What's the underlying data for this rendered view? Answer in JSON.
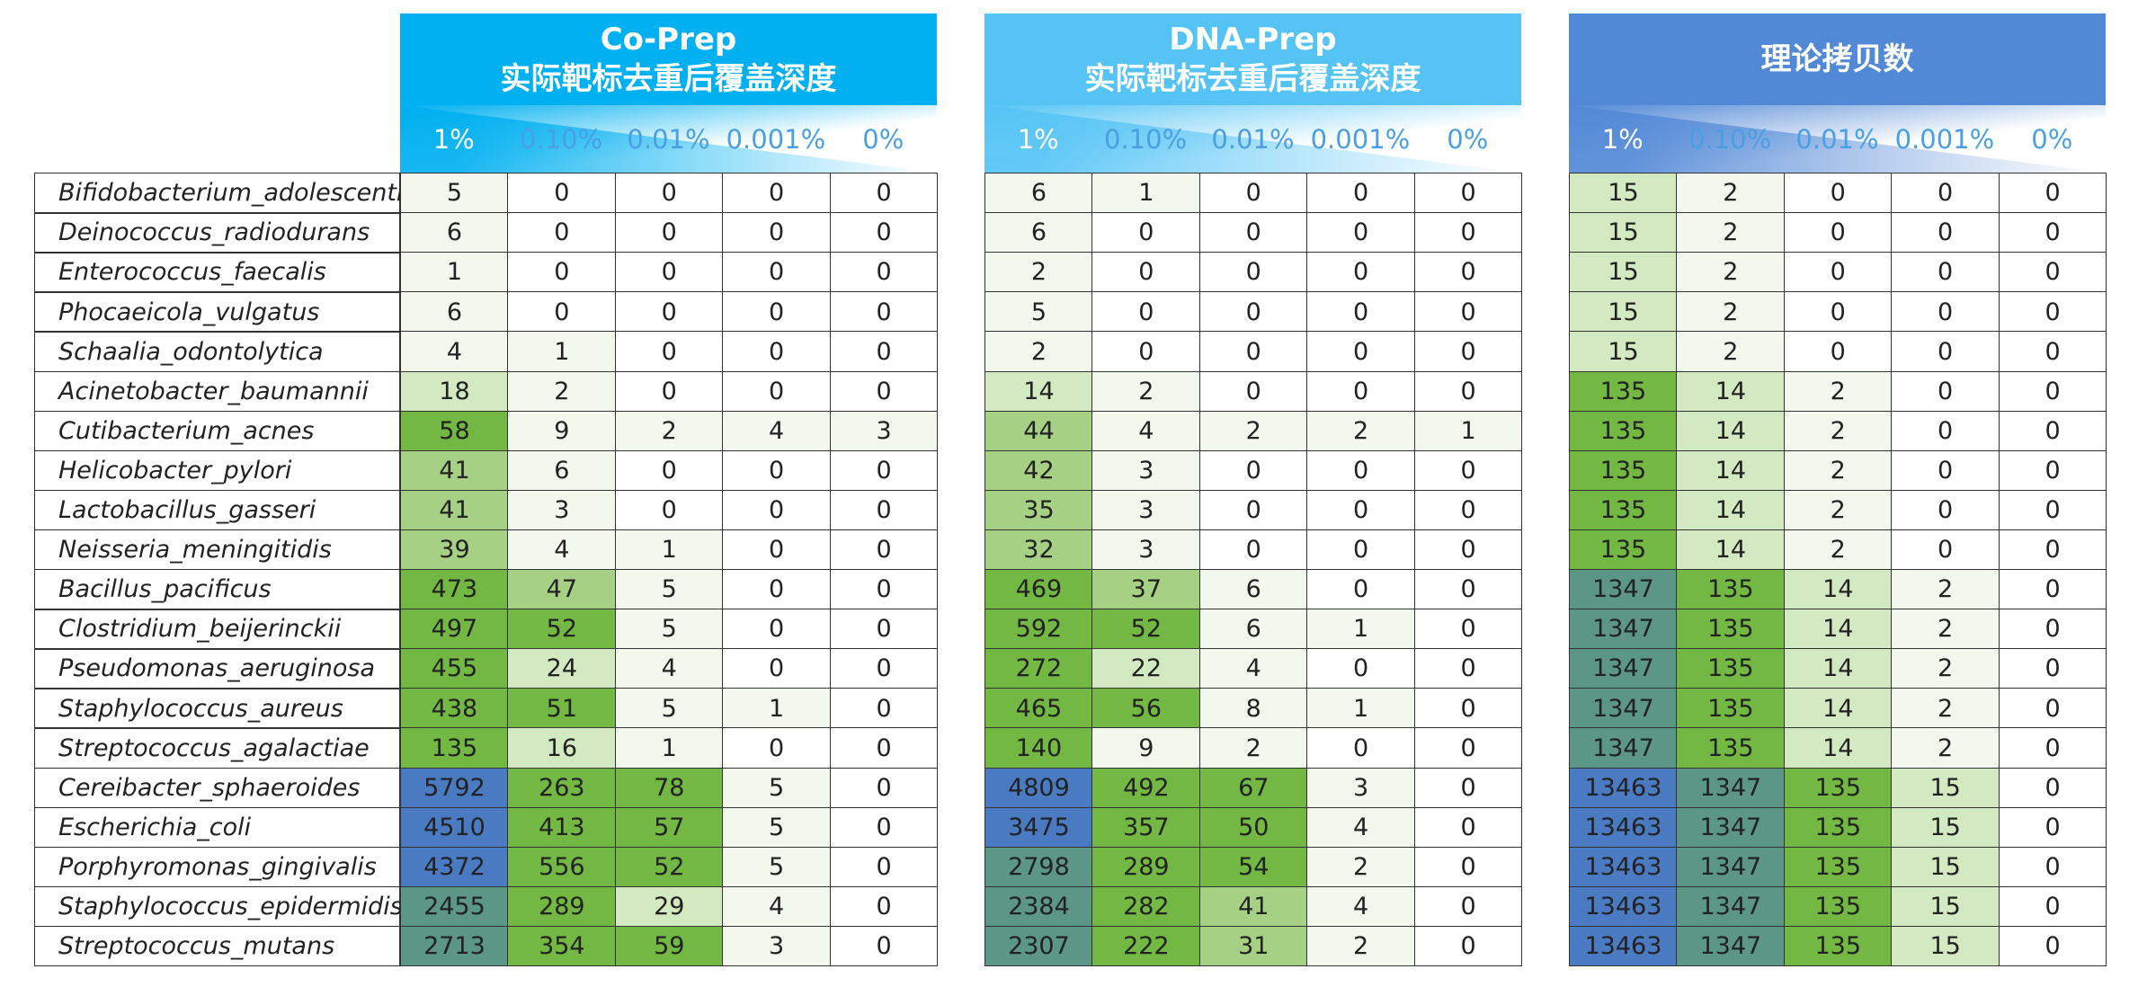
{
  "species": [
    "Bifidobacterium_adolescentis",
    "Deinococcus_radiodurans",
    "Enterococcus_faecalis",
    "Phocaeicola_vulgatus",
    "Schaalia_odontolytica",
    "Acinetobacter_baumannii",
    "Cutibacterium_acnes",
    "Helicobacter_pylori",
    "Lactobacillus_gasseri",
    "Neisseria_meningitidis",
    "Bacillus_pacificus",
    "Clostridium_beijerinckii",
    "Pseudomonas_aeruginosa",
    "Staphylococcus_aureus",
    "Streptococcus_agalactiae",
    "Cereibacter_sphaeroides",
    "Escherichia_coli",
    "Porphyromonas_gingivalis",
    "Staphylococcus_epidermidis",
    "Streptococcus_mutans"
  ],
  "panels": [
    {
      "title": [
        "Co-Prep",
        "实际靶标去重后覆盖深度"
      ],
      "header_color": "#00b0f0",
      "columns": [
        "1%",
        "0.10%",
        "0.01%",
        "0.001%",
        "0%"
      ],
      "rows": [
        [
          5,
          0,
          0,
          0,
          0
        ],
        [
          6,
          0,
          0,
          0,
          0
        ],
        [
          1,
          0,
          0,
          0,
          0
        ],
        [
          6,
          0,
          0,
          0,
          0
        ],
        [
          4,
          1,
          0,
          0,
          0
        ],
        [
          18,
          2,
          0,
          0,
          0
        ],
        [
          58,
          9,
          2,
          4,
          3
        ],
        [
          41,
          6,
          0,
          0,
          0
        ],
        [
          41,
          3,
          0,
          0,
          0
        ],
        [
          39,
          4,
          1,
          0,
          0
        ],
        [
          473,
          47,
          5,
          0,
          0
        ],
        [
          497,
          52,
          5,
          0,
          0
        ],
        [
          455,
          24,
          4,
          0,
          0
        ],
        [
          438,
          51,
          5,
          1,
          0
        ],
        [
          135,
          16,
          1,
          0,
          0
        ],
        [
          5792,
          263,
          78,
          5,
          0
        ],
        [
          4510,
          413,
          57,
          5,
          0
        ],
        [
          4372,
          556,
          52,
          5,
          0
        ],
        [
          2455,
          289,
          29,
          4,
          0
        ],
        [
          2713,
          354,
          59,
          3,
          0
        ]
      ]
    },
    {
      "title": [
        "DNA-Prep",
        "实际靶标去重后覆盖深度"
      ],
      "header_color": "#55c4f5",
      "columns": [
        "1%",
        "0.10%",
        "0.01%",
        "0.001%",
        "0%"
      ],
      "rows": [
        [
          6,
          1,
          0,
          0,
          0
        ],
        [
          6,
          0,
          0,
          0,
          0
        ],
        [
          2,
          0,
          0,
          0,
          0
        ],
        [
          5,
          0,
          0,
          0,
          0
        ],
        [
          2,
          0,
          0,
          0,
          0
        ],
        [
          14,
          2,
          0,
          0,
          0
        ],
        [
          44,
          4,
          2,
          2,
          1
        ],
        [
          42,
          3,
          0,
          0,
          0
        ],
        [
          35,
          3,
          0,
          0,
          0
        ],
        [
          32,
          3,
          0,
          0,
          0
        ],
        [
          469,
          37,
          6,
          0,
          0
        ],
        [
          592,
          52,
          6,
          1,
          0
        ],
        [
          272,
          22,
          4,
          0,
          0
        ],
        [
          465,
          56,
          8,
          1,
          0
        ],
        [
          140,
          9,
          2,
          0,
          0
        ],
        [
          4809,
          492,
          67,
          3,
          0
        ],
        [
          3475,
          357,
          50,
          4,
          0
        ],
        [
          2798,
          289,
          54,
          2,
          0
        ],
        [
          2384,
          282,
          41,
          4,
          0
        ],
        [
          2307,
          222,
          31,
          2,
          0
        ]
      ]
    },
    {
      "title": [
        "理论拷贝数"
      ],
      "header_color": "#5289d6",
      "columns": [
        "1%",
        "0.10%",
        "0.01%",
        "0.001%",
        "0%"
      ],
      "rows": [
        [
          15,
          2,
          0,
          0,
          0
        ],
        [
          15,
          2,
          0,
          0,
          0
        ],
        [
          15,
          2,
          0,
          0,
          0
        ],
        [
          15,
          2,
          0,
          0,
          0
        ],
        [
          15,
          2,
          0,
          0,
          0
        ],
        [
          135,
          14,
          2,
          0,
          0
        ],
        [
          135,
          14,
          2,
          0,
          0
        ],
        [
          135,
          14,
          2,
          0,
          0
        ],
        [
          135,
          14,
          2,
          0,
          0
        ],
        [
          135,
          14,
          2,
          0,
          0
        ],
        [
          1347,
          135,
          14,
          2,
          0
        ],
        [
          1347,
          135,
          14,
          2,
          0
        ],
        [
          1347,
          135,
          14,
          2,
          0
        ],
        [
          1347,
          135,
          14,
          2,
          0
        ],
        [
          1347,
          135,
          14,
          2,
          0
        ],
        [
          13463,
          1347,
          135,
          15,
          0
        ],
        [
          13463,
          1347,
          135,
          15,
          0
        ],
        [
          13463,
          1347,
          135,
          15,
          0
        ],
        [
          13463,
          1347,
          135,
          15,
          0
        ],
        [
          13463,
          1347,
          135,
          15,
          0
        ]
      ]
    }
  ]
}
